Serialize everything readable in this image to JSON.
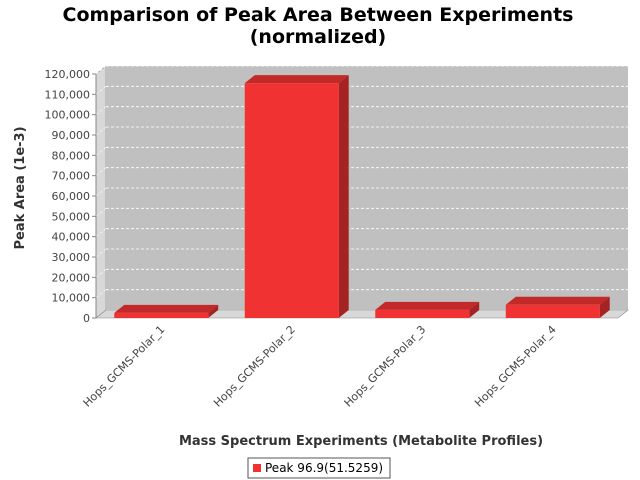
{
  "chart_data": {
    "type": "bar",
    "title_line1": "Comparison of Peak Area Between Experiments",
    "title_line2": "(normalized)",
    "xlabel": "Mass Spectrum Experiments (Metabolite Profiles)",
    "ylabel": "Peak Area (1e-3)",
    "categories": [
      "Hops_GCMS-Polar_1",
      "Hops_GCMS-Polar_2",
      "Hops_GCMS-Polar_3",
      "Hops_GCMS-Polar_4"
    ],
    "series": [
      {
        "name": "Peak 96.9(51.5259)",
        "values": [
          2500,
          115500,
          4000,
          6500
        ]
      }
    ],
    "ylim": [
      0,
      120000
    ],
    "yticks": [
      0,
      10000,
      20000,
      30000,
      40000,
      50000,
      60000,
      70000,
      80000,
      90000,
      100000,
      110000,
      120000
    ],
    "ytick_labels": [
      "0",
      "10,000",
      "20,000",
      "30,000",
      "40,000",
      "50,000",
      "60,000",
      "70,000",
      "80,000",
      "90,000",
      "100,000",
      "110,000",
      "120,000"
    ],
    "grid": true,
    "legend_position": "bottom",
    "colors": {
      "bar_front": "#f03232",
      "bar_side": "#a62323",
      "bar_top": "#c22929",
      "plot_bg": "#c0c0c0",
      "wall": "#d8d8d8",
      "floor": "#d8d8d8",
      "grid": "#ffffff"
    }
  }
}
